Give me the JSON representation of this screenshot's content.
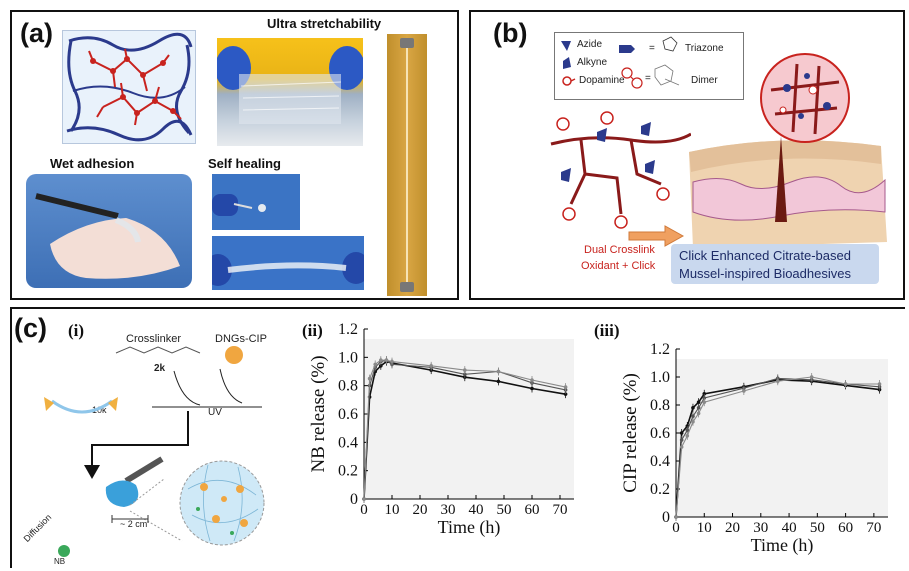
{
  "panel_a": {
    "label": "(a)",
    "captions": {
      "stretch": "Ultra stretchability",
      "wet": "Wet adhesion",
      "heal": "Self healing"
    }
  },
  "panel_b": {
    "label": "(b)",
    "legend": {
      "azide": "Azide",
      "alkyne": "Alkyne",
      "dopamine": "Dopamine",
      "triazone": "Triazone",
      "dimer": "Dimer",
      "eq": "="
    },
    "crosslink_line1": "Dual Crosslink",
    "crosslink_line2": "Oxidant + Click",
    "box_line1": "Click Enhanced Citrate-based",
    "box_line2": "Mussel-inspired Bioadhesives"
  },
  "panel_c": {
    "label": "(c)",
    "sub_i": "(i)",
    "sub_ii": "(ii)",
    "sub_iii": "(iii)",
    "schem": {
      "crosslinker": "Crosslinker",
      "dngs": "DNGs-CIP",
      "k2": "2k",
      "k10": "10k",
      "uv": "UV",
      "diffusion": "Diffusion",
      "scale": "~ 2 cm",
      "nb": "NB"
    }
  },
  "colors": {
    "red": "#c8231e",
    "navy": "#2b3a8c",
    "gold": "#b98a2a",
    "box": "#c9d8ee"
  },
  "chart_data": [
    {
      "type": "line",
      "xlabel": "Time (h)",
      "ylabel": "NB release (%)",
      "xlim": [
        0,
        75
      ],
      "ylim": [
        0,
        1.2
      ],
      "xticks": [
        "0",
        "10",
        "20",
        "30",
        "40",
        "50",
        "60",
        "70"
      ],
      "yticks": [
        "0",
        "0.2",
        "0.4",
        "0.6",
        "0.8",
        "1.0",
        "1.2"
      ],
      "series": [
        {
          "x": [
            0,
            2,
            4,
            6,
            8,
            10,
            24,
            36,
            48,
            60,
            72
          ],
          "y": [
            0,
            0.72,
            0.9,
            0.94,
            0.97,
            0.96,
            0.91,
            0.86,
            0.83,
            0.78,
            0.74
          ]
        },
        {
          "x": [
            0,
            2,
            4,
            6,
            8,
            10,
            24,
            36,
            48,
            60,
            72
          ],
          "y": [
            0,
            0.8,
            0.93,
            0.97,
            0.98,
            0.95,
            0.93,
            0.88,
            0.9,
            0.82,
            0.77
          ]
        },
        {
          "x": [
            0,
            2,
            4,
            6,
            8,
            10,
            24,
            36,
            48,
            60,
            72
          ],
          "y": [
            0,
            0.85,
            0.95,
            0.98,
            0.98,
            0.97,
            0.94,
            0.91,
            0.9,
            0.84,
            0.79
          ]
        }
      ]
    },
    {
      "type": "line",
      "xlabel": "Time (h)",
      "ylabel": "CIP release (%)",
      "xlim": [
        0,
        75
      ],
      "ylim": [
        0,
        1.2
      ],
      "xticks": [
        "0",
        "10",
        "20",
        "30",
        "40",
        "50",
        "60",
        "70"
      ],
      "yticks": [
        "0",
        "0.2",
        "0.4",
        "0.6",
        "0.8",
        "1.0",
        "1.2"
      ],
      "series": [
        {
          "x": [
            0,
            2,
            4,
            6,
            8,
            10,
            24,
            36,
            48,
            60,
            72
          ],
          "y": [
            0,
            0.6,
            0.65,
            0.78,
            0.82,
            0.88,
            0.93,
            0.98,
            0.97,
            0.94,
            0.91
          ]
        },
        {
          "x": [
            0,
            2,
            4,
            6,
            8,
            10,
            24,
            36,
            48,
            60,
            72
          ],
          "y": [
            0,
            0.55,
            0.62,
            0.72,
            0.78,
            0.85,
            0.92,
            0.99,
            0.98,
            0.95,
            0.93
          ]
        },
        {
          "x": [
            0,
            2,
            4,
            6,
            8,
            10,
            24,
            36,
            48,
            60,
            72
          ],
          "y": [
            0,
            0.5,
            0.58,
            0.68,
            0.74,
            0.82,
            0.9,
            0.97,
            1.0,
            0.95,
            0.95
          ]
        }
      ]
    }
  ]
}
